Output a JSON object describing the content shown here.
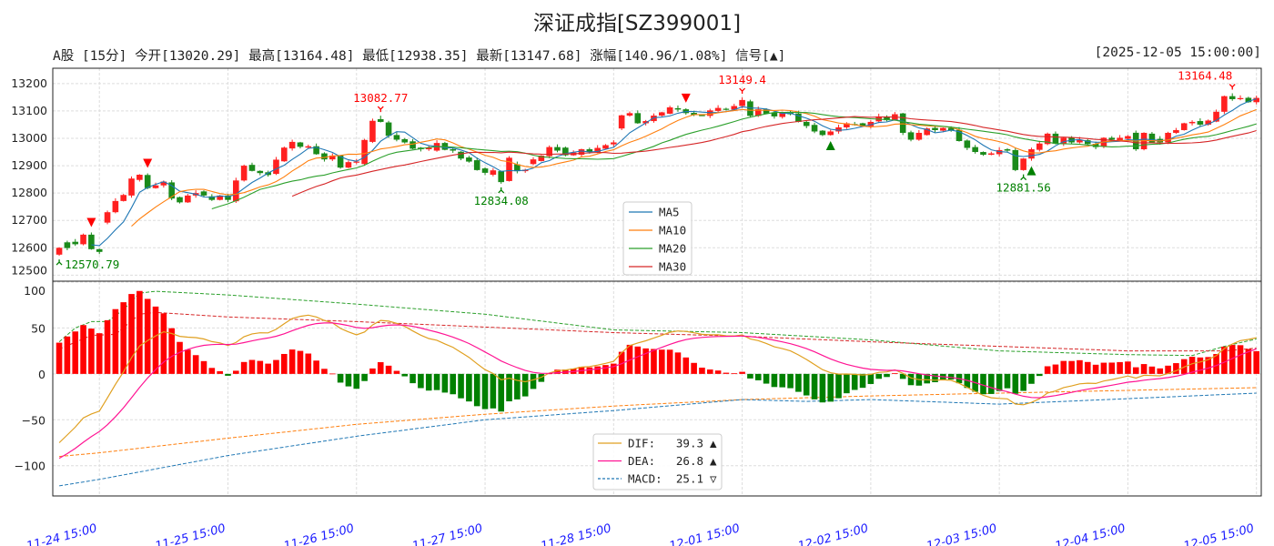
{
  "header": {
    "title": "深证成指[SZ399001]",
    "info": "A股 [15分] 今开[13020.29] 最高[13164.48] 最低[12938.35] 最新[13147.68] 涨幅[140.96/1.08%] 信号[▲]",
    "datetime": "[2025-12-05 15:00:00]"
  },
  "colors": {
    "up": "#ff2020",
    "down": "#1a8a1a",
    "ma5": "#1f77b4",
    "ma10": "#ff7f0e",
    "ma20": "#2ca02c",
    "ma30": "#d62728",
    "dif": "#e0a020",
    "dea": "#ff1493",
    "macd": "#1f77b4"
  },
  "chart_data": [
    {
      "type": "candlestick",
      "title": "深证成指[SZ399001]",
      "ylim": [
        12478,
        13256
      ],
      "xlim": [
        -0.8,
        149.6
      ],
      "yticks": [
        "12500",
        "12600",
        "12700",
        "12800",
        "12900",
        "13000",
        "13100",
        "13200"
      ],
      "xticks": [
        {
          "index": 5,
          "label": "11-24 15:00"
        },
        {
          "index": 21,
          "label": "11-25 15:00"
        },
        {
          "index": 37,
          "label": "11-26 15:00"
        },
        {
          "index": 53,
          "label": "11-27 15:00"
        },
        {
          "index": 69,
          "label": "11-28 15:00"
        },
        {
          "index": 85,
          "label": "12-01 15:00"
        },
        {
          "index": 101,
          "label": "12-02 15:00"
        },
        {
          "index": 117,
          "label": "12-03 15:00"
        },
        {
          "index": 133,
          "label": "12-04 15:00"
        },
        {
          "index": 149,
          "label": "12-05 15:00"
        }
      ],
      "open": [
        12575,
        12620,
        12622,
        12613,
        12648,
        12595,
        12692,
        12730,
        12771,
        12791,
        12848,
        12866,
        12818,
        12828,
        12839,
        12785,
        12766,
        12791,
        12806,
        12788,
        12775,
        12791,
        12770,
        12846,
        12903,
        12881,
        12876,
        12870,
        12916,
        12963,
        12985,
        12966,
        12971,
        12945,
        12923,
        12937,
        12893,
        12913,
        12906,
        12987,
        13070,
        13058,
        13012,
        12997,
        12989,
        12966,
        12960,
        12955,
        12983,
        12960,
        12951,
        12930,
        12920,
        12890,
        12867,
        12880,
        12844,
        12905,
        12880,
        12906,
        12917,
        12935,
        12968,
        12966,
        12938,
        12940,
        12960,
        12950,
        12962,
        12978,
        13036,
        13083,
        13092,
        13055,
        13063,
        13083,
        13090,
        13110,
        13106,
        13093,
        13085,
        13082,
        13100,
        13108,
        13105,
        13118,
        13135,
        13082,
        13106,
        13093,
        13078,
        13097,
        13091,
        13060,
        13049,
        13028,
        13012,
        13025,
        13040,
        13052,
        13055,
        13044,
        13062,
        13080,
        13066,
        13091,
        13022,
        12995,
        13012,
        13038,
        13028,
        13038,
        13031,
        12992,
        12968,
        12950,
        12940,
        12942,
        12960,
        12957,
        12884,
        12926,
        12958,
        12979,
        13017,
        12980,
        13002,
        12985,
        12993,
        12980,
        12970,
        13002,
        12993,
        12998,
        13020.29,
        12960,
        13017,
        12998,
        12985,
        13020,
        13030,
        13055,
        13063,
        13050,
        13061,
        13097,
        13154,
        13143,
        13148,
        13132
      ],
      "close": [
        12600,
        12599,
        12613,
        12648,
        12595,
        12585,
        12730,
        12771,
        12793,
        12853,
        12867,
        12818,
        12828,
        12842,
        12780,
        12766,
        12791,
        12800,
        12791,
        12775,
        12791,
        12775,
        12846,
        12900,
        12881,
        12873,
        12866,
        12922,
        12966,
        12987,
        12969,
        12971,
        12942,
        12923,
        12937,
        12893,
        12913,
        12915,
        12994,
        13064,
        13060,
        13009,
        12995,
        12985,
        12962,
        12960,
        12966,
        12983,
        12958,
        12955,
        12926,
        12915,
        12884,
        12874,
        12883,
        12840,
        12929,
        12880,
        12885,
        12923,
        12937,
        12968,
        12955,
        12938,
        12948,
        12960,
        12950,
        12965,
        12975,
        12985,
        13084,
        13092,
        13055,
        13063,
        13083,
        13095,
        13113,
        13105,
        13092,
        13085,
        13084,
        13102,
        13111,
        13105,
        13118,
        13140,
        13082,
        13106,
        13090,
        13080,
        13095,
        13088,
        13060,
        13045,
        13025,
        13012,
        13025,
        13040,
        13055,
        13050,
        13044,
        13060,
        13080,
        13066,
        13088,
        13020,
        12995,
        13020,
        13036,
        13030,
        13038,
        13028,
        12990,
        12965,
        12950,
        12940,
        12945,
        12957,
        12955,
        12884,
        12926,
        12960,
        12981,
        13017,
        12980,
        13002,
        12985,
        12995,
        12979,
        12968,
        13002,
        12995,
        13002,
        13008,
        12960,
        13020,
        12985,
        12985,
        13020,
        13030,
        13055,
        13060,
        13050,
        13065,
        13097,
        13154,
        13143,
        13147,
        13132,
        13147.68
      ],
      "extremes": [
        {
          "index": 0,
          "type": "low",
          "label": "12570.79",
          "value": 12570.79
        },
        {
          "index": 40,
          "type": "high",
          "label": "13082.77",
          "value": 13082.77
        },
        {
          "index": 55,
          "type": "low",
          "label": "12834.08",
          "value": 12834.08
        },
        {
          "index": 85,
          "type": "high",
          "label": "13149.4",
          "value": 13149.4
        },
        {
          "index": 120,
          "type": "low",
          "label": "12881.56",
          "value": 12881.56
        },
        {
          "index": 146,
          "type": "high",
          "label": "13164.48",
          "value": 13164.48
        }
      ],
      "signals": [
        {
          "index": 4,
          "type": "sell"
        },
        {
          "index": 11,
          "type": "sell"
        },
        {
          "index": 78,
          "type": "sell"
        },
        {
          "index": 96,
          "type": "buy"
        },
        {
          "index": 121,
          "type": "buy"
        }
      ],
      "legend": {
        "placement": "lower-center",
        "items": [
          {
            "key": "ma5",
            "label": "MA5",
            "period": 5
          },
          {
            "key": "ma10",
            "label": "MA10",
            "period": 10
          },
          {
            "key": "ma20",
            "label": "MA20",
            "period": 20
          },
          {
            "key": "ma30",
            "label": "MA30",
            "period": 30
          }
        ]
      }
    },
    {
      "type": "macd",
      "ylim": [
        -133,
        101
      ],
      "yticks": [
        "100",
        "50",
        "0",
        "−50",
        "−100"
      ],
      "ytick_values": [
        100,
        50,
        0,
        -50,
        -100
      ],
      "init": {
        "dif": -75,
        "dea": -92
      },
      "bands": [
        {
          "color": "#2ca02c",
          "points": [
            [
              0,
              35
            ],
            [
              2,
              50
            ],
            [
              4,
              57
            ],
            [
              6,
              57
            ],
            [
              8,
              70
            ],
            [
              10,
              88
            ],
            [
              12,
              90
            ],
            [
              21,
              86
            ],
            [
              37,
              76
            ],
            [
              53,
              65
            ],
            [
              69,
              48
            ],
            [
              85,
              45
            ],
            [
              101,
              37
            ],
            [
              117,
              25
            ],
            [
              133,
              21
            ],
            [
              141,
              20
            ],
            [
              145,
              30
            ],
            [
              149,
              38
            ]
          ]
        },
        {
          "color": "#d62728",
          "points": [
            [
              0,
              27
            ],
            [
              4,
              42
            ],
            [
              7,
              43
            ],
            [
              10,
              65
            ],
            [
              12,
              67
            ],
            [
              21,
              62
            ],
            [
              37,
              57
            ],
            [
              53,
              51
            ],
            [
              69,
              45
            ],
            [
              85,
              41
            ],
            [
              101,
              35
            ],
            [
              117,
              30
            ],
            [
              133,
              25
            ],
            [
              145,
              25
            ],
            [
              149,
              28
            ]
          ]
        },
        {
          "color": "#ff7f0e",
          "points": [
            [
              0,
              -90
            ],
            [
              5,
              -86
            ],
            [
              21,
              -70
            ],
            [
              37,
              -55
            ],
            [
              53,
              -44
            ],
            [
              69,
              -35
            ],
            [
              85,
              -28
            ],
            [
              101,
              -24
            ],
            [
              117,
              -21
            ],
            [
              133,
              -18
            ],
            [
              149,
              -15
            ]
          ]
        },
        {
          "color": "#1f77b4",
          "points": [
            [
              0,
              -122
            ],
            [
              5,
              -115
            ],
            [
              21,
              -89
            ],
            [
              37,
              -68
            ],
            [
              53,
              -50
            ],
            [
              69,
              -40
            ],
            [
              85,
              -28
            ],
            [
              93,
              -30
            ],
            [
              101,
              -28
            ],
            [
              117,
              -33
            ],
            [
              133,
              -27
            ],
            [
              149,
              -21
            ]
          ]
        }
      ],
      "legend": {
        "placement": "lower-center",
        "items": [
          {
            "key": "dif",
            "label": "DIF:",
            "value": "39.3",
            "arrow": "▲",
            "style": "solid"
          },
          {
            "key": "dea",
            "label": "DEA:",
            "value": "26.8",
            "arrow": "▲",
            "style": "solid"
          },
          {
            "key": "macd",
            "label": "MACD:",
            "value": "25.1",
            "arrow": "▽",
            "style": "dashed"
          }
        ]
      }
    }
  ]
}
